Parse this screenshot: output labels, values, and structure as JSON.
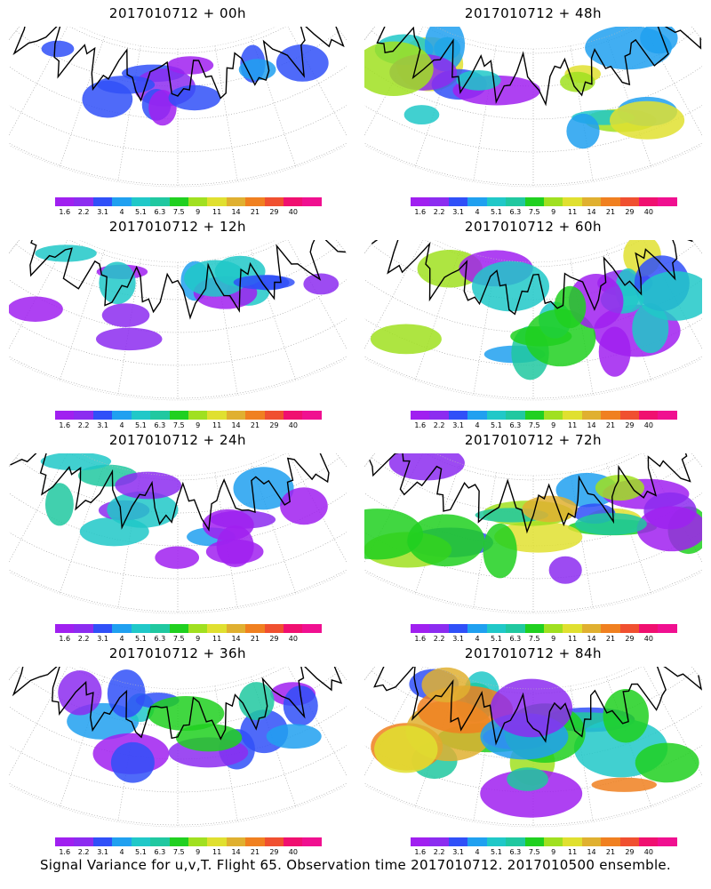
{
  "panels": [
    {
      "title": "2017010712 + 00h",
      "intensity": 0.15
    },
    {
      "title": "2017010712 + 48h",
      "intensity": 0.65
    },
    {
      "title": "2017010712 + 12h",
      "intensity": 0.25
    },
    {
      "title": "2017010712 + 60h",
      "intensity": 0.7
    },
    {
      "title": "2017010712 + 24h",
      "intensity": 0.35
    },
    {
      "title": "2017010712 + 72h",
      "intensity": 0.8
    },
    {
      "title": "2017010712 + 36h",
      "intensity": 0.45
    },
    {
      "title": "2017010712 + 84h",
      "intensity": 0.9
    }
  ],
  "colorbar": {
    "labels": [
      "1.6",
      "2.2",
      "3.1",
      "4",
      "5.1",
      "6.3",
      "7.5",
      "9",
      "11",
      "14",
      "21",
      "29",
      "40"
    ],
    "colors": [
      "#a020f0",
      "#8c2cf0",
      "#3050f8",
      "#20a0f0",
      "#20c8c8",
      "#20c8a0",
      "#20d020",
      "#a0e020",
      "#e0e030",
      "#e0b030",
      "#f08020",
      "#f05030",
      "#f01070",
      "#f01090"
    ]
  },
  "footer": "Signal Variance for u,v,T. Flight 65. Observation time 2017010712. 2017010500 ensemble."
}
